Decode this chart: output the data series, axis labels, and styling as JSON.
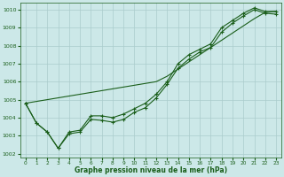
{
  "xlabel": "Graphe pression niveau de la mer (hPa)",
  "background_color": "#cce8e8",
  "grid_color": "#aacccc",
  "line_color": "#1a5e1a",
  "xlim": [
    -0.5,
    23.5
  ],
  "ylim": [
    1001.8,
    1010.4
  ],
  "yticks": [
    1002,
    1003,
    1004,
    1005,
    1006,
    1007,
    1008,
    1009,
    1010
  ],
  "xticks": [
    0,
    1,
    2,
    3,
    4,
    5,
    6,
    7,
    8,
    9,
    10,
    11,
    12,
    13,
    14,
    15,
    16,
    17,
    18,
    19,
    20,
    21,
    22,
    23
  ],
  "s1": [
    1004.8,
    1003.7,
    1003.2,
    1002.3,
    1003.2,
    1003.3,
    1004.1,
    1004.1,
    1004.0,
    1004.2,
    1004.5,
    1004.8,
    1005.3,
    1006.0,
    1007.0,
    1007.5,
    1007.8,
    1008.1,
    1009.0,
    1009.4,
    1009.8,
    1010.1,
    1009.9,
    1009.9
  ],
  "s2": [
    1004.8,
    1003.7,
    1003.2,
    1002.3,
    1003.1,
    1003.2,
    1003.9,
    1003.85,
    1003.75,
    1003.9,
    1004.3,
    1004.55,
    1005.1,
    1005.85,
    1006.75,
    1007.25,
    1007.65,
    1007.9,
    1008.75,
    1009.25,
    1009.65,
    1010.0,
    1009.8,
    1009.75
  ],
  "s3_straight": [
    1004.8,
    1004.9,
    1005.0,
    1005.1,
    1005.2,
    1005.3,
    1005.4,
    1005.5,
    1005.6,
    1005.7,
    1005.8,
    1005.9,
    1006.0,
    1006.3,
    1006.7,
    1007.1,
    1007.5,
    1007.9,
    1008.3,
    1008.7,
    1009.1,
    1009.5,
    1009.85,
    1009.9
  ]
}
